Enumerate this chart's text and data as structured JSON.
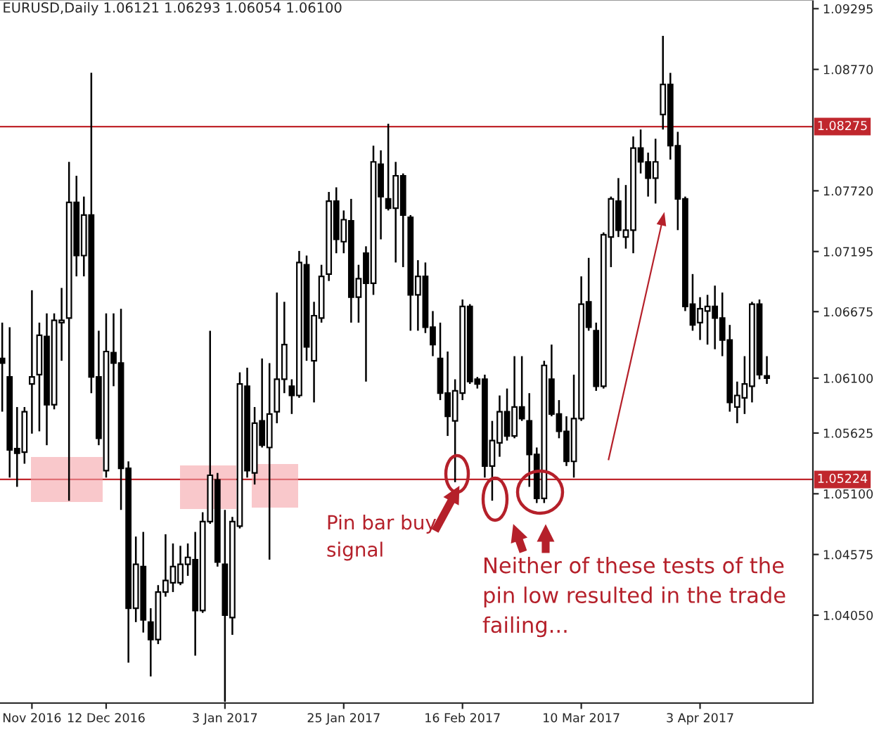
{
  "chart_data": {
    "type": "candlestick",
    "title": "EURUSD,Daily 1.06121 1.06293 1.06054 1.06100",
    "annotations": [
      "Pin bar buy\nsignal",
      "Neither of these tests of the\npin low resulted in the trade\nfailing..."
    ],
    "categories": [
      null,
      null,
      null,
      null,
      "Nov 2016",
      null,
      null,
      null,
      null,
      null,
      null,
      null,
      null,
      null,
      "12 Dec 2016",
      null,
      null,
      null,
      null,
      null,
      null,
      null,
      null,
      null,
      null,
      null,
      null,
      null,
      null,
      null,
      "3 Jan 2017",
      null,
      null,
      null,
      null,
      null,
      null,
      null,
      null,
      null,
      null,
      null,
      null,
      null,
      null,
      null,
      "25 Jan 2017",
      null,
      null,
      null,
      null,
      null,
      null,
      null,
      null,
      null,
      null,
      null,
      null,
      null,
      null,
      null,
      "16 Feb 2017",
      null,
      null,
      null,
      null,
      null,
      null,
      null,
      null,
      null,
      null,
      null,
      null,
      null,
      null,
      null,
      "10 Mar 2017",
      null,
      null,
      null,
      null,
      null,
      null,
      null,
      null,
      null,
      null,
      null,
      null,
      null,
      null,
      null,
      "3 Apr 2017",
      null,
      null,
      null,
      null,
      null,
      null,
      null,
      null,
      null
    ],
    "ohlc": [
      [
        1.0627,
        1.0658,
        1.0581,
        1.0623
      ],
      [
        1.0611,
        1.0654,
        1.0524,
        1.0548
      ],
      [
        1.0549,
        1.0585,
        1.0516,
        1.0545
      ],
      [
        1.0546,
        1.0585,
        1.0536,
        1.0581
      ],
      [
        1.0605,
        1.0686,
        1.0562,
        1.0611
      ],
      [
        1.0613,
        1.0658,
        1.0564,
        1.0647
      ],
      [
        1.0646,
        1.0666,
        1.0552,
        1.0587
      ],
      [
        1.0587,
        1.0666,
        1.0583,
        1.066
      ],
      [
        1.0658,
        1.0688,
        1.0625,
        1.066
      ],
      [
        1.0662,
        1.0797,
        1.0504,
        1.0762
      ],
      [
        1.0762,
        1.0785,
        1.0698,
        1.0716
      ],
      [
        1.0716,
        1.0767,
        1.0698,
        1.0751
      ],
      [
        1.0751,
        1.0874,
        1.0597,
        1.0611
      ],
      [
        1.0611,
        1.0651,
        1.0552,
        1.0558
      ],
      [
        1.053,
        1.0666,
        1.0524,
        1.0633
      ],
      [
        1.0632,
        1.0666,
        1.0603,
        1.0623
      ],
      [
        1.0623,
        1.067,
        1.0496,
        1.0532
      ],
      [
        1.0532,
        1.0538,
        1.0364,
        1.0411
      ],
      [
        1.0411,
        1.0473,
        1.0399,
        1.0449
      ],
      [
        1.0447,
        1.0477,
        1.039,
        1.0401
      ],
      [
        1.0399,
        1.0411,
        1.0352,
        1.0384
      ],
      [
        1.0384,
        1.0431,
        1.038,
        1.0425
      ],
      [
        1.0425,
        1.0475,
        1.0421,
        1.0435
      ],
      [
        1.0433,
        1.0467,
        1.0425,
        1.0447
      ],
      [
        1.0433,
        1.0465,
        1.0431,
        1.0449
      ],
      [
        1.0449,
        1.0467,
        1.0439,
        1.0455
      ],
      [
        1.0453,
        1.0477,
        1.037,
        1.0409
      ],
      [
        1.0409,
        1.0494,
        1.0407,
        1.0486
      ],
      [
        1.0486,
        1.0651,
        1.0484,
        1.0526
      ],
      [
        1.0522,
        1.0528,
        1.0447,
        1.0451
      ],
      [
        1.0449,
        1.0496,
        1.033,
        1.0405
      ],
      [
        1.0403,
        1.049,
        1.0388,
        1.0486
      ],
      [
        1.0482,
        1.0615,
        1.048,
        1.0605
      ],
      [
        1.0603,
        1.0619,
        1.0524,
        1.053
      ],
      [
        1.0528,
        1.0585,
        1.0518,
        1.0571
      ],
      [
        1.0573,
        1.0627,
        1.055,
        1.0552
      ],
      [
        1.055,
        1.0623,
        1.0453,
        1.0579
      ],
      [
        1.0581,
        1.0684,
        1.0571,
        1.0609
      ],
      [
        1.0609,
        1.0676,
        1.0597,
        1.0639
      ],
      [
        1.0603,
        1.0609,
        1.0579,
        1.0595
      ],
      [
        1.0595,
        1.072,
        1.0593,
        1.071
      ],
      [
        1.0708,
        1.0716,
        1.0625,
        1.0637
      ],
      [
        1.0625,
        1.0676,
        1.0589,
        1.0664
      ],
      [
        1.0662,
        1.0708,
        1.0658,
        1.0698
      ],
      [
        1.07,
        1.0771,
        1.0694,
        1.0763
      ],
      [
        1.0763,
        1.0775,
        1.0718,
        1.073
      ],
      [
        1.0728,
        1.0755,
        1.0718,
        1.0747
      ],
      [
        1.0746,
        1.0765,
        1.0658,
        1.068
      ],
      [
        1.068,
        1.0708,
        1.0658,
        1.0696
      ],
      [
        1.0718,
        1.0724,
        1.0607,
        1.0692
      ],
      [
        1.0692,
        1.0811,
        1.0682,
        1.0797
      ],
      [
        1.0795,
        1.0807,
        1.073,
        1.0767
      ],
      [
        1.0765,
        1.083,
        1.0755,
        1.0757
      ],
      [
        1.0757,
        1.0797,
        1.071,
        1.0785
      ],
      [
        1.0785,
        1.0787,
        1.0706,
        1.0751
      ],
      [
        1.0749,
        1.0751,
        1.0651,
        1.0682
      ],
      [
        1.0682,
        1.0712,
        1.0651,
        1.0698
      ],
      [
        1.0698,
        1.071,
        1.0649,
        1.0654
      ],
      [
        1.0654,
        1.0668,
        1.0629,
        1.0639
      ],
      [
        1.0627,
        1.0658,
        1.0591,
        1.0597
      ],
      [
        1.0597,
        1.0633,
        1.056,
        1.0577
      ],
      [
        1.0573,
        1.0609,
        1.052,
        1.0599
      ],
      [
        1.0597,
        1.0678,
        1.0591,
        1.0672
      ],
      [
        1.0672,
        1.0674,
        1.0605,
        1.0607
      ],
      [
        1.0609,
        1.0611,
        1.0601,
        1.0605
      ],
      [
        1.0609,
        1.0613,
        1.0524,
        1.0534
      ],
      [
        1.0534,
        1.0573,
        1.0504,
        1.0556
      ],
      [
        1.0554,
        1.0595,
        1.0542,
        1.0581
      ],
      [
        1.0581,
        1.0601,
        1.0556,
        1.056
      ],
      [
        1.056,
        1.0629,
        1.0558,
        1.0585
      ],
      [
        1.0585,
        1.0629,
        1.0573,
        1.0575
      ],
      [
        1.0573,
        1.0597,
        1.0516,
        1.0544
      ],
      [
        1.0544,
        1.055,
        1.0502,
        1.0506
      ],
      [
        1.0506,
        1.0625,
        1.0502,
        1.0621
      ],
      [
        1.0609,
        1.0639,
        1.0577,
        1.0579
      ],
      [
        1.0579,
        1.0591,
        1.0558,
        1.0564
      ],
      [
        1.0564,
        1.0577,
        1.0534,
        1.0538
      ],
      [
        1.0538,
        1.0613,
        1.0524,
        1.0575
      ],
      [
        1.0575,
        1.0698,
        1.0573,
        1.0674
      ],
      [
        1.0676,
        1.0714,
        1.0651,
        1.0654
      ],
      [
        1.0651,
        1.0658,
        1.0599,
        1.0603
      ],
      [
        1.0603,
        1.0736,
        1.0601,
        1.0734
      ],
      [
        1.0732,
        1.0767,
        1.0706,
        1.0765
      ],
      [
        1.0763,
        1.0783,
        1.0732,
        1.0738
      ],
      [
        1.0732,
        1.0777,
        1.0722,
        1.0738
      ],
      [
        1.0738,
        1.0819,
        1.0718,
        1.0809
      ],
      [
        1.0809,
        1.0825,
        1.0787,
        1.0797
      ],
      [
        1.0797,
        1.0805,
        1.0767,
        1.0783
      ],
      [
        1.0783,
        1.0817,
        1.0761,
        1.0797
      ],
      [
        1.0838,
        1.0906,
        1.0825,
        1.0864
      ],
      [
        1.0864,
        1.0874,
        1.0799,
        1.0811
      ],
      [
        1.0811,
        1.0823,
        1.0738,
        1.0765
      ],
      [
        1.0765,
        1.0767,
        1.0668,
        1.0672
      ],
      [
        1.0674,
        1.07,
        1.0651,
        1.0656
      ],
      [
        1.0658,
        1.068,
        1.0643,
        1.067
      ],
      [
        1.0668,
        1.0682,
        1.0639,
        1.0672
      ],
      [
        1.0672,
        1.069,
        1.0635,
        1.0662
      ],
      [
        1.0662,
        1.0684,
        1.0629,
        1.0643
      ],
      [
        1.0643,
        1.0656,
        1.0581,
        1.0589
      ],
      [
        1.0585,
        1.0607,
        1.0571,
        1.0595
      ],
      [
        1.0593,
        1.0629,
        1.0579,
        1.0605
      ],
      [
        1.0603,
        1.0676,
        1.0589,
        1.0674
      ],
      [
        1.0674,
        1.0678,
        1.0609,
        1.0613
      ],
      [
        1.0612,
        1.0629,
        1.0605,
        1.061
      ]
    ],
    "ylim": [
      1.0329,
      1.0937
    ],
    "yticks": [
      {
        "value": 1.09295,
        "label": "1.09295"
      },
      {
        "value": 1.0877,
        "label": "1.08770"
      },
      {
        "value": 1.0772,
        "label": "1.07720"
      },
      {
        "value": 1.07195,
        "label": "1.07195"
      },
      {
        "value": 1.06675,
        "label": "1.06675"
      },
      {
        "value": 1.061,
        "label": "1.06100"
      },
      {
        "value": 1.05625,
        "label": "1.05625"
      },
      {
        "value": 1.051,
        "label": "1.05100"
      },
      {
        "value": 1.04575,
        "label": "1.04575"
      },
      {
        "value": 1.0405,
        "label": "1.04050"
      }
    ],
    "ref_lines": [
      {
        "axis": "y",
        "value": 1.08275,
        "label": "1.08275",
        "color": "#c0272d"
      },
      {
        "axis": "y",
        "value": 1.05224,
        "label": "1.05224",
        "color": "#c0272d"
      }
    ]
  }
}
